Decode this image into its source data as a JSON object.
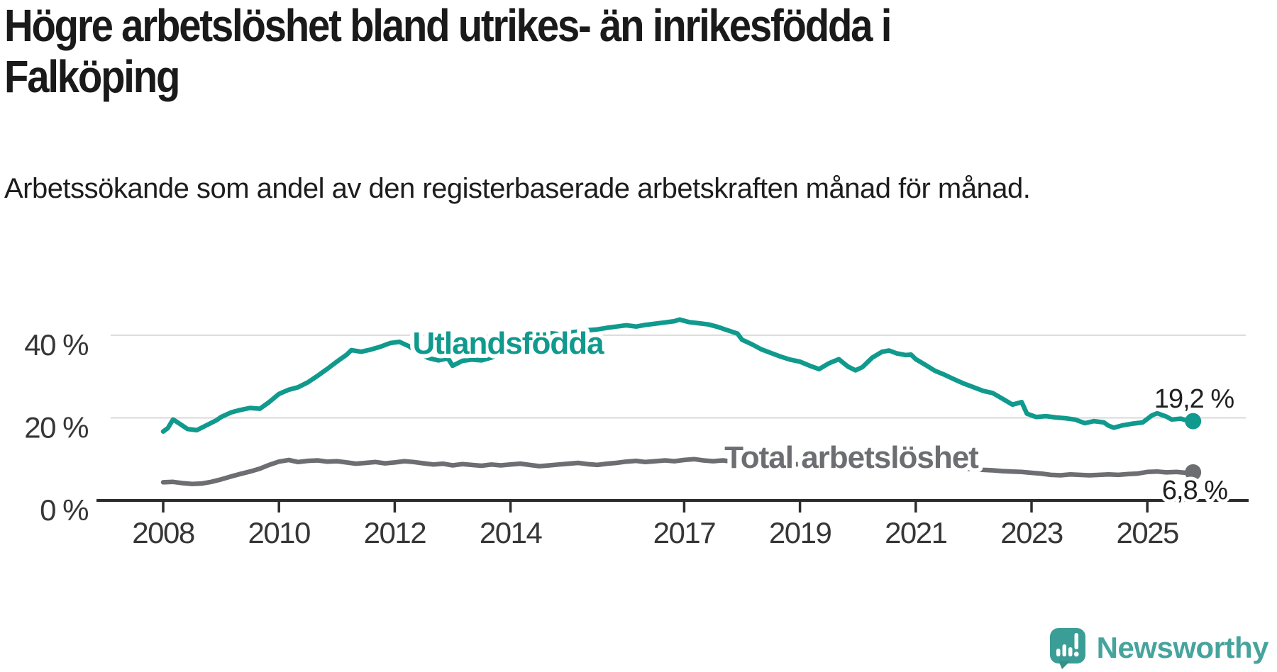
{
  "header": {
    "title": "Högre arbetslöshet bland utrikes- än inrikesfödda i Falköping",
    "subtitle": "Arbetssökande som andel av den registerbaserade arbetskraften månad för månad."
  },
  "branding": {
    "name": "Newsworthy",
    "icon": "newsworthy-speech-bubble-chart-icon",
    "text_color": "#46a49d",
    "icon_color": "#3b9e96"
  },
  "chart_data": {
    "type": "line",
    "title": "Högre arbetslöshet bland utrikes- än inrikesfödda i Falköping",
    "subtitle": "Arbetssökande som andel av den registerbaserade arbetskraften månad för månad.",
    "unit": "%",
    "grid": true,
    "legend_position": "inline-labels",
    "x_axis": {
      "tick_labels": [
        "2008",
        "2010",
        "2012",
        "2014",
        "2017",
        "2019",
        "2021",
        "2023",
        "2025"
      ],
      "tick_years": [
        2008,
        2010,
        2012,
        2014,
        2017,
        2019,
        2021,
        2023,
        2025
      ],
      "range": [
        2007.1,
        2026.7
      ]
    },
    "y_axis": {
      "ticks": [
        {
          "value": 0,
          "label": "0 %"
        },
        {
          "value": 20,
          "label": "20 %"
        },
        {
          "value": 40,
          "label": "40 %"
        }
      ],
      "range": [
        0,
        48
      ]
    },
    "series": [
      {
        "name": "Utlandsfödda",
        "color": "#109a8d",
        "end_label": "19,2 %",
        "end_value": 19.2,
        "points": [
          [
            2008.0,
            16.7
          ],
          [
            2008.08,
            17.5
          ],
          [
            2008.17,
            19.6
          ],
          [
            2008.25,
            18.9
          ],
          [
            2008.42,
            17.3
          ],
          [
            2008.58,
            17.0
          ],
          [
            2008.75,
            18.2
          ],
          [
            2008.92,
            19.4
          ],
          [
            2009.0,
            20.2
          ],
          [
            2009.17,
            21.3
          ],
          [
            2009.33,
            21.9
          ],
          [
            2009.5,
            22.4
          ],
          [
            2009.67,
            22.2
          ],
          [
            2009.83,
            23.8
          ],
          [
            2010.0,
            25.8
          ],
          [
            2010.17,
            26.8
          ],
          [
            2010.33,
            27.4
          ],
          [
            2010.5,
            28.6
          ],
          [
            2010.67,
            30.2
          ],
          [
            2010.83,
            31.8
          ],
          [
            2011.0,
            33.6
          ],
          [
            2011.17,
            35.3
          ],
          [
            2011.25,
            36.4
          ],
          [
            2011.42,
            36.0
          ],
          [
            2011.58,
            36.5
          ],
          [
            2011.75,
            37.2
          ],
          [
            2011.92,
            38.1
          ],
          [
            2012.08,
            38.4
          ],
          [
            2012.25,
            37.3
          ],
          [
            2012.42,
            35.6
          ],
          [
            2012.58,
            34.5
          ],
          [
            2012.75,
            33.9
          ],
          [
            2012.92,
            34.4
          ],
          [
            2013.0,
            32.6
          ],
          [
            2013.17,
            33.8
          ],
          [
            2013.33,
            34.1
          ],
          [
            2013.5,
            33.9
          ],
          [
            2013.67,
            34.6
          ],
          [
            2013.83,
            35.6
          ],
          [
            2014.0,
            36.8
          ],
          [
            2014.17,
            38.2
          ],
          [
            2014.33,
            39.4
          ],
          [
            2014.5,
            40.2
          ],
          [
            2014.67,
            40.5
          ],
          [
            2014.83,
            40.3
          ],
          [
            2015.0,
            40.6
          ],
          [
            2015.17,
            40.9
          ],
          [
            2015.33,
            41.2
          ],
          [
            2015.5,
            41.4
          ],
          [
            2015.67,
            41.8
          ],
          [
            2015.83,
            42.1
          ],
          [
            2016.0,
            42.4
          ],
          [
            2016.17,
            42.1
          ],
          [
            2016.33,
            42.5
          ],
          [
            2016.5,
            42.8
          ],
          [
            2016.67,
            43.1
          ],
          [
            2016.83,
            43.4
          ],
          [
            2016.92,
            43.8
          ],
          [
            2017.08,
            43.2
          ],
          [
            2017.25,
            42.9
          ],
          [
            2017.42,
            42.6
          ],
          [
            2017.58,
            42.0
          ],
          [
            2017.75,
            41.2
          ],
          [
            2017.92,
            40.4
          ],
          [
            2018.0,
            38.9
          ],
          [
            2018.17,
            37.8
          ],
          [
            2018.33,
            36.6
          ],
          [
            2018.5,
            35.7
          ],
          [
            2018.67,
            34.8
          ],
          [
            2018.83,
            34.1
          ],
          [
            2019.0,
            33.6
          ],
          [
            2019.17,
            32.6
          ],
          [
            2019.33,
            31.8
          ],
          [
            2019.5,
            33.2
          ],
          [
            2019.67,
            34.2
          ],
          [
            2019.83,
            32.4
          ],
          [
            2019.96,
            31.5
          ],
          [
            2020.08,
            32.3
          ],
          [
            2020.25,
            34.6
          ],
          [
            2020.42,
            36.0
          ],
          [
            2020.54,
            36.3
          ],
          [
            2020.67,
            35.6
          ],
          [
            2020.83,
            35.2
          ],
          [
            2020.92,
            35.3
          ],
          [
            2021.0,
            34.2
          ],
          [
            2021.17,
            32.8
          ],
          [
            2021.33,
            31.4
          ],
          [
            2021.5,
            30.4
          ],
          [
            2021.67,
            29.3
          ],
          [
            2021.83,
            28.3
          ],
          [
            2022.0,
            27.4
          ],
          [
            2022.17,
            26.5
          ],
          [
            2022.33,
            26.0
          ],
          [
            2022.5,
            24.6
          ],
          [
            2022.67,
            23.2
          ],
          [
            2022.83,
            23.8
          ],
          [
            2022.92,
            21.0
          ],
          [
            2023.08,
            20.2
          ],
          [
            2023.25,
            20.4
          ],
          [
            2023.42,
            20.1
          ],
          [
            2023.58,
            19.9
          ],
          [
            2023.75,
            19.6
          ],
          [
            2023.92,
            18.7
          ],
          [
            2024.08,
            19.2
          ],
          [
            2024.25,
            18.9
          ],
          [
            2024.33,
            18.1
          ],
          [
            2024.42,
            17.6
          ],
          [
            2024.58,
            18.2
          ],
          [
            2024.75,
            18.6
          ],
          [
            2024.92,
            18.9
          ],
          [
            2025.08,
            20.6
          ],
          [
            2025.17,
            21.1
          ],
          [
            2025.33,
            20.3
          ],
          [
            2025.42,
            19.6
          ],
          [
            2025.58,
            19.8
          ],
          [
            2025.67,
            19.4
          ],
          [
            2025.79,
            19.2
          ]
        ]
      },
      {
        "name": "Total arbetslöshet",
        "color": "#6d6e72",
        "end_label": "6,8 %",
        "end_value": 6.8,
        "points": [
          [
            2008.0,
            4.4
          ],
          [
            2008.17,
            4.5
          ],
          [
            2008.33,
            4.2
          ],
          [
            2008.5,
            4.0
          ],
          [
            2008.67,
            4.1
          ],
          [
            2008.83,
            4.5
          ],
          [
            2009.0,
            5.1
          ],
          [
            2009.17,
            5.8
          ],
          [
            2009.33,
            6.4
          ],
          [
            2009.5,
            7.0
          ],
          [
            2009.67,
            7.7
          ],
          [
            2009.83,
            8.6
          ],
          [
            2010.0,
            9.4
          ],
          [
            2010.17,
            9.8
          ],
          [
            2010.33,
            9.3
          ],
          [
            2010.5,
            9.6
          ],
          [
            2010.67,
            9.7
          ],
          [
            2010.83,
            9.4
          ],
          [
            2011.0,
            9.5
          ],
          [
            2011.17,
            9.2
          ],
          [
            2011.33,
            8.9
          ],
          [
            2011.5,
            9.1
          ],
          [
            2011.67,
            9.3
          ],
          [
            2011.83,
            9.0
          ],
          [
            2012.0,
            9.2
          ],
          [
            2012.17,
            9.5
          ],
          [
            2012.33,
            9.3
          ],
          [
            2012.5,
            9.0
          ],
          [
            2012.67,
            8.7
          ],
          [
            2012.83,
            8.9
          ],
          [
            2013.0,
            8.5
          ],
          [
            2013.17,
            8.8
          ],
          [
            2013.33,
            8.6
          ],
          [
            2013.5,
            8.4
          ],
          [
            2013.67,
            8.7
          ],
          [
            2013.83,
            8.5
          ],
          [
            2014.0,
            8.7
          ],
          [
            2014.17,
            8.9
          ],
          [
            2014.33,
            8.6
          ],
          [
            2014.5,
            8.3
          ],
          [
            2014.67,
            8.5
          ],
          [
            2014.83,
            8.7
          ],
          [
            2015.0,
            8.9
          ],
          [
            2015.17,
            9.1
          ],
          [
            2015.33,
            8.8
          ],
          [
            2015.5,
            8.6
          ],
          [
            2015.67,
            8.9
          ],
          [
            2015.83,
            9.1
          ],
          [
            2016.0,
            9.4
          ],
          [
            2016.17,
            9.6
          ],
          [
            2016.33,
            9.3
          ],
          [
            2016.5,
            9.5
          ],
          [
            2016.67,
            9.7
          ],
          [
            2016.83,
            9.5
          ],
          [
            2017.0,
            9.8
          ],
          [
            2017.17,
            10.0
          ],
          [
            2017.33,
            9.7
          ],
          [
            2017.5,
            9.5
          ],
          [
            2017.67,
            9.7
          ],
          [
            2017.83,
            9.4
          ],
          [
            2018.0,
            9.5
          ],
          [
            2018.17,
            9.2
          ],
          [
            2018.33,
            9.0
          ],
          [
            2018.5,
            9.2
          ],
          [
            2018.67,
            8.9
          ],
          [
            2018.83,
            8.7
          ],
          [
            2019.0,
            8.8
          ],
          [
            2019.17,
            8.6
          ],
          [
            2019.33,
            8.4
          ],
          [
            2019.5,
            8.6
          ],
          [
            2019.67,
            8.8
          ],
          [
            2019.83,
            8.5
          ],
          [
            2020.0,
            8.7
          ],
          [
            2020.17,
            9.2
          ],
          [
            2020.33,
            9.6
          ],
          [
            2020.5,
            9.4
          ],
          [
            2020.67,
            9.1
          ],
          [
            2020.83,
            8.9
          ],
          [
            2021.0,
            8.7
          ],
          [
            2021.17,
            8.5
          ],
          [
            2021.33,
            8.3
          ],
          [
            2021.5,
            8.1
          ],
          [
            2021.67,
            7.9
          ],
          [
            2021.83,
            7.7
          ],
          [
            2022.0,
            7.6
          ],
          [
            2022.17,
            7.4
          ],
          [
            2022.33,
            7.3
          ],
          [
            2022.5,
            7.1
          ],
          [
            2022.67,
            7.0
          ],
          [
            2022.83,
            6.9
          ],
          [
            2023.0,
            6.7
          ],
          [
            2023.17,
            6.5
          ],
          [
            2023.33,
            6.2
          ],
          [
            2023.5,
            6.1
          ],
          [
            2023.67,
            6.3
          ],
          [
            2023.83,
            6.2
          ],
          [
            2024.0,
            6.1
          ],
          [
            2024.17,
            6.2
          ],
          [
            2024.33,
            6.3
          ],
          [
            2024.5,
            6.2
          ],
          [
            2024.67,
            6.4
          ],
          [
            2024.83,
            6.5
          ],
          [
            2025.0,
            6.9
          ],
          [
            2025.17,
            7.0
          ],
          [
            2025.33,
            6.8
          ],
          [
            2025.5,
            6.9
          ],
          [
            2025.67,
            6.7
          ],
          [
            2025.79,
            6.8
          ]
        ]
      }
    ]
  }
}
